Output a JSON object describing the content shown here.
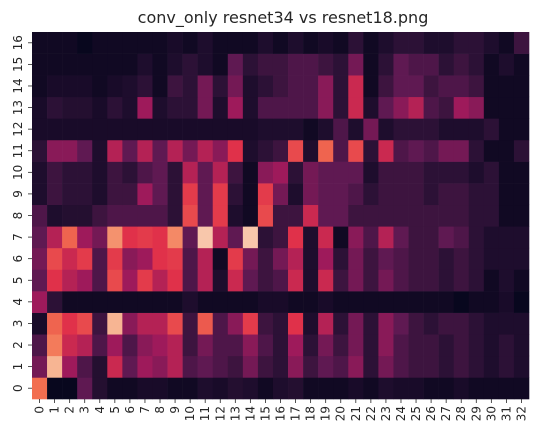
{
  "chart_data": {
    "type": "heatmap",
    "title": "conv_only resnet34 vs resnet18.png",
    "xlabel": "",
    "ylabel": "",
    "x_ticks": [
      "0",
      "1",
      "2",
      "3",
      "4",
      "5",
      "6",
      "7",
      "8",
      "9",
      "10",
      "11",
      "12",
      "13",
      "14",
      "15",
      "16",
      "17",
      "18",
      "19",
      "20",
      "21",
      "22",
      "23",
      "24",
      "25",
      "26",
      "27",
      "28",
      "29",
      "30",
      "31",
      "32"
    ],
    "y_ticks": [
      "0",
      "1",
      "2",
      "3",
      "4",
      "5",
      "6",
      "7",
      "8",
      "9",
      "10",
      "11",
      "12",
      "13",
      "14",
      "15",
      "16"
    ],
    "colormap": "rocket",
    "value_range": [
      0,
      1
    ],
    "colorbar": false,
    "grid": false,
    "rows": [
      [
        0.72,
        0.02,
        0.02,
        0.3,
        0.12,
        0.05,
        0.05,
        0.08,
        0.08,
        0.05,
        0.05,
        0.1,
        0.08,
        0.12,
        0.1,
        0.05,
        0.1,
        0.12,
        0.05,
        0.05,
        0.05,
        0.08,
        0.05,
        0.1,
        0.08,
        0.08,
        0.05,
        0.05,
        0.08,
        0.05,
        0.05,
        0.05,
        0.05
      ],
      [
        0.35,
        0.88,
        0.45,
        0.25,
        0.12,
        0.55,
        0.3,
        0.45,
        0.4,
        0.5,
        0.25,
        0.3,
        0.25,
        0.2,
        0.35,
        0.2,
        0.15,
        0.4,
        0.2,
        0.3,
        0.25,
        0.4,
        0.15,
        0.35,
        0.25,
        0.2,
        0.2,
        0.15,
        0.2,
        0.15,
        0.1,
        0.15,
        0.1
      ],
      [
        0.25,
        0.75,
        0.55,
        0.5,
        0.25,
        0.45,
        0.25,
        0.4,
        0.45,
        0.5,
        0.2,
        0.35,
        0.25,
        0.25,
        0.4,
        0.25,
        0.15,
        0.45,
        0.15,
        0.35,
        0.2,
        0.35,
        0.15,
        0.4,
        0.25,
        0.2,
        0.2,
        0.15,
        0.2,
        0.15,
        0.1,
        0.15,
        0.1
      ],
      [
        0.08,
        0.7,
        0.6,
        0.65,
        0.2,
        0.88,
        0.4,
        0.5,
        0.5,
        0.65,
        0.2,
        0.68,
        0.25,
        0.4,
        0.62,
        0.2,
        0.15,
        0.6,
        0.1,
        0.5,
        0.15,
        0.35,
        0.15,
        0.4,
        0.3,
        0.2,
        0.15,
        0.2,
        0.2,
        0.15,
        0.1,
        0.1,
        0.1
      ],
      [
        0.45,
        0.15,
        0.05,
        0.05,
        0.05,
        0.05,
        0.05,
        0.05,
        0.05,
        0.05,
        0.1,
        0.05,
        0.05,
        0.05,
        0.05,
        0.08,
        0.08,
        0.05,
        0.05,
        0.08,
        0.05,
        0.05,
        0.05,
        0.05,
        0.05,
        0.05,
        0.05,
        0.05,
        0.02,
        0.05,
        0.05,
        0.08,
        0.02
      ],
      [
        0.3,
        0.6,
        0.5,
        0.45,
        0.25,
        0.65,
        0.45,
        0.62,
        0.5,
        0.6,
        0.25,
        0.5,
        0.1,
        0.55,
        0.3,
        0.2,
        0.25,
        0.55,
        0.1,
        0.55,
        0.2,
        0.35,
        0.2,
        0.35,
        0.25,
        0.2,
        0.2,
        0.15,
        0.2,
        0.15,
        0.05,
        0.1,
        0.05
      ],
      [
        0.35,
        0.65,
        0.55,
        0.62,
        0.25,
        0.62,
        0.4,
        0.45,
        0.6,
        0.62,
        0.25,
        0.5,
        0.05,
        0.62,
        0.35,
        0.2,
        0.35,
        0.5,
        0.1,
        0.45,
        0.15,
        0.35,
        0.2,
        0.3,
        0.25,
        0.2,
        0.2,
        0.15,
        0.2,
        0.15,
        0.1,
        0.1,
        0.1
      ],
      [
        0.3,
        0.5,
        0.7,
        0.45,
        0.35,
        0.8,
        0.6,
        0.62,
        0.6,
        0.78,
        0.3,
        0.92,
        0.5,
        0.3,
        0.92,
        0.15,
        0.2,
        0.6,
        0.1,
        0.55,
        0.05,
        0.4,
        0.25,
        0.5,
        0.3,
        0.2,
        0.2,
        0.3,
        0.25,
        0.15,
        0.1,
        0.1,
        0.1
      ],
      [
        0.25,
        0.1,
        0.12,
        0.12,
        0.2,
        0.25,
        0.25,
        0.25,
        0.25,
        0.15,
        0.65,
        0.3,
        0.62,
        0.1,
        0.05,
        0.65,
        0.2,
        0.2,
        0.55,
        0.3,
        0.3,
        0.2,
        0.2,
        0.2,
        0.2,
        0.2,
        0.2,
        0.2,
        0.2,
        0.15,
        0.15,
        0.05,
        0.05
      ],
      [
        0.1,
        0.2,
        0.15,
        0.15,
        0.1,
        0.2,
        0.2,
        0.45,
        0.3,
        0.15,
        0.62,
        0.3,
        0.62,
        0.15,
        0.05,
        0.62,
        0.35,
        0.1,
        0.35,
        0.3,
        0.3,
        0.25,
        0.15,
        0.2,
        0.2,
        0.2,
        0.15,
        0.2,
        0.2,
        0.15,
        0.15,
        0.05,
        0.05
      ],
      [
        0.1,
        0.2,
        0.15,
        0.15,
        0.1,
        0.2,
        0.15,
        0.25,
        0.3,
        0.15,
        0.5,
        0.3,
        0.5,
        0.2,
        0.05,
        0.4,
        0.45,
        0.15,
        0.35,
        0.3,
        0.3,
        0.3,
        0.1,
        0.2,
        0.2,
        0.2,
        0.15,
        0.15,
        0.15,
        0.1,
        0.15,
        0.05,
        0.05
      ],
      [
        0.15,
        0.4,
        0.4,
        0.3,
        0.1,
        0.5,
        0.3,
        0.5,
        0.3,
        0.5,
        0.35,
        0.5,
        0.4,
        0.6,
        0.1,
        0.15,
        0.2,
        0.65,
        0.1,
        0.7,
        0.25,
        0.65,
        0.15,
        0.55,
        0.25,
        0.3,
        0.25,
        0.35,
        0.35,
        0.15,
        0.05,
        0.05,
        0.15
      ],
      [
        0.08,
        0.08,
        0.08,
        0.08,
        0.08,
        0.08,
        0.08,
        0.08,
        0.08,
        0.08,
        0.08,
        0.08,
        0.08,
        0.08,
        0.08,
        0.1,
        0.1,
        0.1,
        0.05,
        0.1,
        0.25,
        0.1,
        0.35,
        0.1,
        0.15,
        0.15,
        0.15,
        0.1,
        0.1,
        0.1,
        0.15,
        0.05,
        0.05
      ],
      [
        0.08,
        0.15,
        0.12,
        0.12,
        0.08,
        0.15,
        0.1,
        0.45,
        0.1,
        0.15,
        0.15,
        0.35,
        0.1,
        0.45,
        0.1,
        0.25,
        0.25,
        0.25,
        0.25,
        0.4,
        0.15,
        0.55,
        0.1,
        0.3,
        0.4,
        0.5,
        0.25,
        0.2,
        0.45,
        0.4,
        0.05,
        0.05,
        0.05
      ],
      [
        0.05,
        0.08,
        0.08,
        0.08,
        0.05,
        0.08,
        0.1,
        0.15,
        0.05,
        0.2,
        0.15,
        0.35,
        0.15,
        0.35,
        0.1,
        0.15,
        0.2,
        0.25,
        0.25,
        0.4,
        0.15,
        0.55,
        0.05,
        0.2,
        0.3,
        0.3,
        0.2,
        0.25,
        0.25,
        0.2,
        0.05,
        0.05,
        0.05
      ],
      [
        0.05,
        0.05,
        0.05,
        0.05,
        0.05,
        0.05,
        0.05,
        0.1,
        0.05,
        0.1,
        0.15,
        0.1,
        0.05,
        0.3,
        0.15,
        0.2,
        0.2,
        0.25,
        0.25,
        0.2,
        0.15,
        0.35,
        0.05,
        0.15,
        0.3,
        0.25,
        0.25,
        0.15,
        0.2,
        0.15,
        0.05,
        0.1,
        0.05
      ],
      [
        0.05,
        0.05,
        0.05,
        0.02,
        0.05,
        0.05,
        0.05,
        0.05,
        0.05,
        0.08,
        0.05,
        0.1,
        0.05,
        0.05,
        0.05,
        0.1,
        0.05,
        0.1,
        0.05,
        0.08,
        0.05,
        0.15,
        0.05,
        0.1,
        0.15,
        0.15,
        0.1,
        0.1,
        0.15,
        0.15,
        0.1,
        0.05,
        0.2
      ]
    ]
  }
}
